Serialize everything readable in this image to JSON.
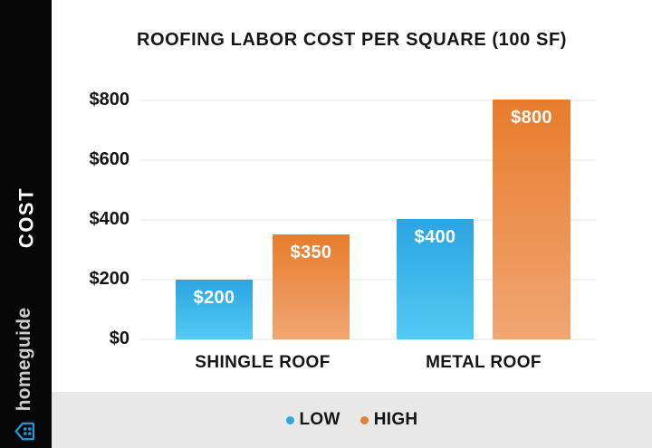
{
  "sidebar": {
    "vertical_label": "COST",
    "brand_name": "homeguide",
    "brand_color": "#1E9CD7"
  },
  "chart_data": {
    "type": "bar",
    "title": "ROOFING LABOR COST PER SQUARE (100 SF)",
    "categories": [
      "SHINGLE ROOF",
      "METAL ROOF"
    ],
    "series": [
      {
        "name": "LOW",
        "values": [
          200,
          400
        ],
        "labels": [
          "$200",
          "$400"
        ],
        "color_top": "#2BA4E1",
        "color_bottom": "#52CBF4",
        "legend_color": "#2FA9DC"
      },
      {
        "name": "HIGH",
        "values": [
          350,
          800
        ],
        "labels": [
          "$350",
          "$800"
        ],
        "color_top": "#E87C2D",
        "color_bottom": "#F0A673",
        "legend_color": "#E0813B"
      }
    ],
    "y_ticks": [
      {
        "label": "$800",
        "value": 800
      },
      {
        "label": "$600",
        "value": 600
      },
      {
        "label": "$400",
        "value": 400
      },
      {
        "label": "$200",
        "value": 200
      },
      {
        "label": "$0",
        "value": 0
      }
    ],
    "ylim": [
      0,
      800
    ],
    "grid": true,
    "legend_position": "bottom",
    "gridline_color": "#F1F1F1",
    "legend_strip_color": "#E8E8E8"
  },
  "legend": {
    "items": [
      {
        "label": "LOW",
        "color": "#2FA9DC"
      },
      {
        "label": "HIGH",
        "color": "#E0813B"
      }
    ]
  }
}
